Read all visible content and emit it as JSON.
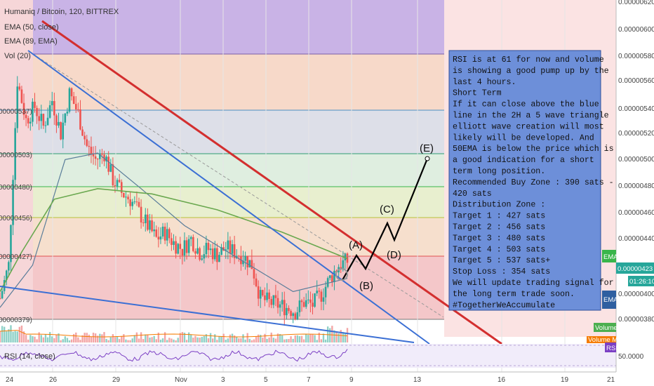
{
  "header": {
    "title": "Humaniq / Bitcoin, 120, BITTREX",
    "ema50": "EMA (50, close)",
    "ema89": "EMA (89, EMA)",
    "vol": "Vol (20)"
  },
  "rsi_panel": {
    "label": "RSI (14, close)"
  },
  "right_axis": {
    "ticks": [
      "0.00000620",
      "0.00000600",
      "0.00000580",
      "0.00000560",
      "0.00000540",
      "0.00000520",
      "0.00000500",
      "0.00000480",
      "0.00000460",
      "0.00000440",
      "0.00000400",
      "0.00000380"
    ],
    "rsi_tick": "50.0000",
    "price_tag": "0.00000423",
    "time_tag": "01:26:10",
    "ema_tag_1": "EMA",
    "ema_tag_2": "EMA",
    "volume_tag": "Volume",
    "volume_ma_tag": "Volume MA",
    "rsi_tag": "RSI"
  },
  "left_axis": {
    "labels": [
      "00000537)",
      "00000503)",
      "00000480)",
      "00000456)",
      "00000427)",
      "00000379)"
    ]
  },
  "x_axis": {
    "labels": [
      "24",
      "26",
      "29",
      "Nov",
      "3",
      "5",
      "7",
      "9",
      "13",
      "16",
      "19",
      "21"
    ]
  },
  "note": {
    "lines": [
      " RSI is at 61 for now and volume",
      "is showing a good pump up by the",
      "last 4 hours.",
      "Short Term",
      "If it can close above the blue",
      "line in the 2H a 5 wave triangle",
      "elliott wave creation will most",
      "likely will be developed. And",
      "50EMA is below the price which is",
      "a good indication for a short",
      "term long position.",
      "Recommended Buy Zone : 390 sats -",
      "420 sats",
      "Distribution Zone :",
      "Target 1 : 427 sats",
      "Target 2 : 456 sats",
      "Target 3 : 480 sats",
      "Target 4 : 503 sats",
      "Target 5 : 537 sats+",
      "Stop Loss : 354 sats",
      "We will update trading signal for",
      "the long term trade soon.",
      "#TogetherWeAccumulate"
    ]
  },
  "waves": {
    "a": "(A)",
    "b": "(B)",
    "c": "(C)",
    "d": "(D)",
    "e": "(E)"
  },
  "colors": {
    "red_line": "#d32f2f",
    "blue_line": "#3b6fd4",
    "ema50": "#6aa84f",
    "ema89": "#5a7d9a",
    "note_bg": "#6d8fd9",
    "candle_up": "#26a69a",
    "candle_down": "#ef5350"
  },
  "chart_data": {
    "type": "candlestick",
    "symbol": "Humaniq / Bitcoin, 120, BITTREX",
    "fib_levels": [
      5.8e-06,
      5.37e-06,
      5.03e-06,
      4.8e-06,
      4.56e-06,
      4.27e-06,
      3.79e-06
    ],
    "y_range": [
      3.3e-06,
      6.3e-06
    ],
    "current_price": 4.23e-06,
    "ema50": [
      [
        0,
        400
      ],
      [
        10,
        430
      ],
      [
        25,
        470
      ],
      [
        45,
        478
      ],
      [
        70,
        474
      ],
      [
        100,
        462
      ],
      [
        130,
        445
      ],
      [
        160,
        425
      ]
    ],
    "ema89": [
      [
        0,
        388
      ],
      [
        15,
        420
      ],
      [
        30,
        500
      ],
      [
        45,
        505
      ],
      [
        65,
        478
      ],
      [
        85,
        450
      ],
      [
        110,
        425
      ],
      [
        135,
        400
      ],
      [
        160,
        410
      ]
    ],
    "close_path": [
      [
        0,
        395
      ],
      [
        4,
        420
      ],
      [
        8,
        560
      ],
      [
        12,
        530
      ],
      [
        16,
        540
      ],
      [
        20,
        525
      ],
      [
        24,
        545
      ],
      [
        28,
        520
      ],
      [
        32,
        550
      ],
      [
        36,
        535
      ],
      [
        40,
        510
      ],
      [
        44,
        500
      ],
      [
        48,
        505
      ],
      [
        52,
        485
      ],
      [
        56,
        475
      ],
      [
        60,
        470
      ],
      [
        64,
        460
      ],
      [
        68,
        450
      ],
      [
        72,
        440
      ],
      [
        76,
        445
      ],
      [
        80,
        437
      ],
      [
        84,
        432
      ],
      [
        88,
        440
      ],
      [
        92,
        430
      ],
      [
        96,
        432
      ],
      [
        100,
        428
      ],
      [
        104,
        433
      ],
      [
        108,
        430
      ],
      [
        112,
        427
      ],
      [
        116,
        420
      ],
      [
        120,
        395
      ],
      [
        124,
        392
      ],
      [
        128,
        390
      ],
      [
        132,
        388
      ],
      [
        136,
        385
      ],
      [
        140,
        392
      ],
      [
        144,
        390
      ],
      [
        148,
        398
      ],
      [
        152,
        410
      ],
      [
        156,
        420
      ],
      [
        160,
        423
      ]
    ],
    "projection": [
      [
        160,
        423
      ],
      [
        166,
        438
      ],
      [
        172,
        420
      ],
      [
        185,
        452
      ],
      [
        190,
        442
      ],
      [
        203,
        502
      ]
    ],
    "annotations": [
      "(A)",
      "(B)",
      "(C)",
      "(D)",
      "(E)"
    ]
  }
}
